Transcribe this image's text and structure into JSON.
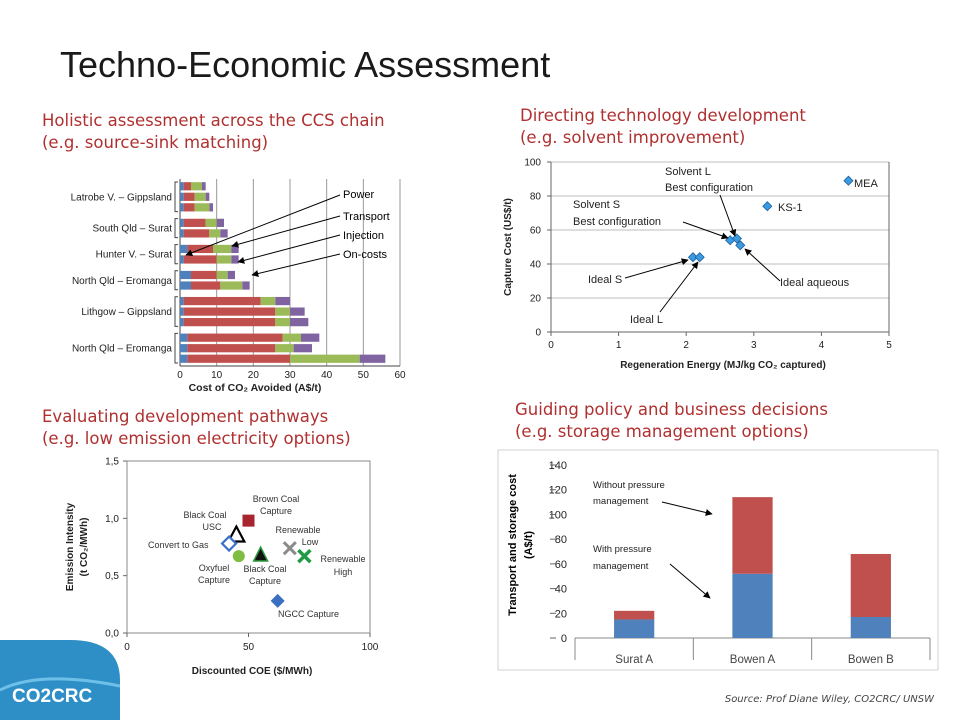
{
  "page": {
    "title": "Techno-Economic Assessment",
    "source": "Source: Prof Diane Wiley, CO2CRC/ UNSW",
    "logo_text": "CO2CRC",
    "sections": [
      {
        "line1": "Holistic assessment across the CCS chain",
        "line2": "(e.g. source-sink matching)"
      },
      {
        "line1": "Directing technology development",
        "line2": "(e.g. solvent improvement)"
      },
      {
        "line1": "Evaluating development pathways",
        "line2": "(e.g. low emission electricity options)"
      },
      {
        "line1": "Guiding policy and business decisions",
        "line2": "(e.g. storage management options)"
      }
    ]
  },
  "colors": {
    "blue": "#4f81bd",
    "red": "#c0504d",
    "green": "#9bbb59",
    "purple": "#8064a2",
    "title_red": "#b03030"
  },
  "chart_data": [
    {
      "type": "bar",
      "orientation": "horizontal",
      "stacked": true,
      "xlabel": "Cost of CO₂ Avoided (A$/t)",
      "xlim": [
        0,
        60
      ],
      "xticks": [
        "0",
        "10",
        "20",
        "30",
        "40",
        "50",
        "60"
      ],
      "groups": [
        {
          "label": "Latrobe V. – Gippsland",
          "rows": 3
        },
        {
          "label": "South Qld – Surat",
          "rows": 2
        },
        {
          "label": "Hunter V. – Surat",
          "rows": 2
        },
        {
          "label": "North Qld – Eromanga",
          "rows": 2
        },
        {
          "label": "Lithgow – Gippsland",
          "rows": 3
        },
        {
          "label": "North Qld – Eromanga",
          "rows": 3
        }
      ],
      "series": [
        {
          "name": "Power",
          "color": "#4f81bd",
          "values": [
            1,
            1,
            1,
            1,
            1,
            2,
            1,
            3,
            3,
            1,
            1,
            1,
            2,
            2,
            2
          ]
        },
        {
          "name": "Transport",
          "color": "#c0504d",
          "values": [
            2,
            3,
            3,
            6,
            7,
            7,
            9,
            7,
            8,
            21,
            25,
            25,
            26,
            24,
            28
          ]
        },
        {
          "name": "Injection",
          "color": "#9bbb59",
          "values": [
            3,
            3,
            4,
            3,
            3,
            5,
            4,
            3,
            6,
            4,
            4,
            4,
            5,
            5,
            19
          ]
        },
        {
          "name": "On-costs",
          "color": "#8064a2",
          "values": [
            1,
            1,
            1,
            2,
            2,
            2,
            2,
            2,
            2,
            4,
            4,
            5,
            5,
            5,
            7
          ]
        }
      ],
      "legend_labels": [
        "Power",
        "Transport",
        "Injection",
        "On-costs"
      ]
    },
    {
      "type": "scatter",
      "xlabel": "Regeneration Energy (MJ/kg CO₂ captured)",
      "ylabel": "Capture Cost (US$/t)",
      "xlim": [
        0,
        5
      ],
      "ylim": [
        0,
        100
      ],
      "xticks": [
        "0",
        "1",
        "2",
        "3",
        "4",
        "5"
      ],
      "yticks": [
        "0",
        "20",
        "40",
        "60",
        "80",
        "100"
      ],
      "points": [
        {
          "x": 2.1,
          "y": 44
        },
        {
          "x": 2.2,
          "y": 44
        },
        {
          "x": 2.65,
          "y": 54
        },
        {
          "x": 2.75,
          "y": 55
        },
        {
          "x": 2.8,
          "y": 51
        },
        {
          "x": 3.2,
          "y": 74
        },
        {
          "x": 4.4,
          "y": 89
        }
      ],
      "annotations": {
        "mea": "MEA",
        "ks1": "KS-1",
        "solvent_l_1": "Solvent L",
        "solvent_l_2": "Best configuration",
        "solvent_s_1": "Solvent S",
        "solvent_s_2": "Best configuration",
        "ideal_s": "Ideal S",
        "ideal_l": "Ideal L",
        "ideal_aqueous": "Ideal aqueous"
      }
    },
    {
      "type": "scatter",
      "xlabel": "Discounted COE ($/MWh)",
      "ylabel_1": "Emission Intensity",
      "ylabel_2": "(t CO₂/MWh)",
      "xlim": [
        0,
        100
      ],
      "ylim": [
        0,
        1.5
      ],
      "xticks": [
        "0",
        "50",
        "100"
      ],
      "yticks": [
        "0,0",
        "0,5",
        "1,0",
        "1,5"
      ],
      "points": [
        {
          "name": "Brown Coal Capture",
          "x": 50,
          "y": 0.98
        },
        {
          "name": "Black Coal USC",
          "x": 45,
          "y": 0.85
        },
        {
          "name": "Convert to Gas",
          "x": 42,
          "y": 0.78
        },
        {
          "name": "Oxyfuel Capture",
          "x": 46,
          "y": 0.67
        },
        {
          "name": "Black Coal Capture",
          "x": 55,
          "y": 0.68
        },
        {
          "name": "Renewable Low",
          "x": 67,
          "y": 0.74
        },
        {
          "name": "Renewable High",
          "x": 73,
          "y": 0.67
        },
        {
          "name": "NGCC Capture",
          "x": 62,
          "y": 0.28
        }
      ],
      "labels": {
        "brown_1": "Brown Coal",
        "brown_2": "Capture",
        "usc_1": "Black Coal",
        "usc_2": "USC",
        "gas": "Convert to Gas",
        "oxy_1": "Oxyfuel",
        "oxy_2": "Capture",
        "bcc_1": "Black Coal",
        "bcc_2": "Capture",
        "rl_1": "Renewable",
        "rl_2": "Low",
        "rh_1": "Renewable",
        "rh_2": "High",
        "ngcc": "NGCC Capture"
      }
    },
    {
      "type": "bar",
      "stacked": true,
      "ylabel_1": "Transport and storage cost",
      "ylabel_2": "(A$/t)",
      "ylim": [
        0,
        140
      ],
      "yticks": [
        "0",
        "20",
        "40",
        "60",
        "80",
        "100",
        "120",
        "140"
      ],
      "categories": [
        "Surat A",
        "Bowen A",
        "Bowen B"
      ],
      "series": [
        {
          "name": "With pressure management",
          "color": "#4f81bd",
          "values": [
            15,
            52,
            17
          ]
        },
        {
          "name": "Without pressure management increment",
          "color": "#c0504d",
          "values": [
            7,
            62,
            51
          ]
        }
      ],
      "annotations": {
        "without_1": "Without pressure",
        "without_2": "management",
        "with_1": "With pressure",
        "with_2": "management"
      }
    }
  ]
}
